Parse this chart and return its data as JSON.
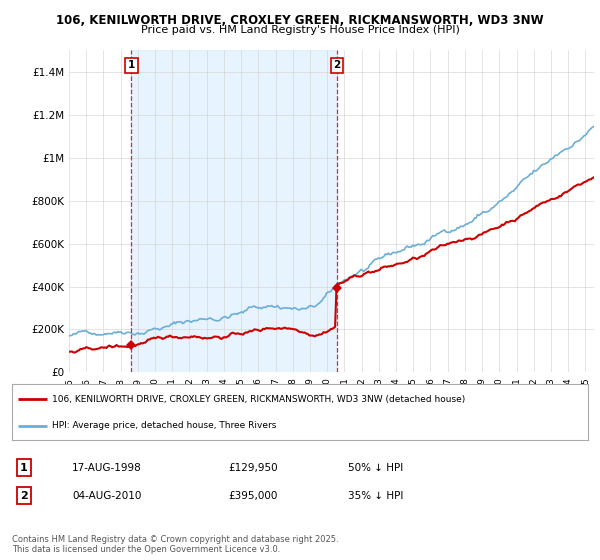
{
  "title1": "106, KENILWORTH DRIVE, CROXLEY GREEN, RICKMANSWORTH, WD3 3NW",
  "title2": "Price paid vs. HM Land Registry's House Price Index (HPI)",
  "hpi_color": "#6baed6",
  "property_color": "#cc0000",
  "shade_color": "#ddeeff",
  "background_color": "#ffffff",
  "fig_bg_color": "#ffffff",
  "ylim": [
    0,
    1500000
  ],
  "yticks": [
    0,
    200000,
    400000,
    600000,
    800000,
    1000000,
    1200000,
    1400000
  ],
  "ytick_labels": [
    "£0",
    "£200K",
    "£400K",
    "£600K",
    "£800K",
    "£1M",
    "£1.2M",
    "£1.4M"
  ],
  "sale1_year": 1998.62,
  "sale1_price": 129950,
  "sale1_label": "1",
  "sale1_date": "17-AUG-1998",
  "sale1_hpi": "50% ↓ HPI",
  "sale2_year": 2010.58,
  "sale2_price": 395000,
  "sale2_label": "2",
  "sale2_date": "04-AUG-2010",
  "sale2_hpi": "35% ↓ HPI",
  "legend_line1": "106, KENILWORTH DRIVE, CROXLEY GREEN, RICKMANSWORTH, WD3 3NW (detached house)",
  "legend_line2": "HPI: Average price, detached house, Three Rivers",
  "footer": "Contains HM Land Registry data © Crown copyright and database right 2025.\nThis data is licensed under the Open Government Licence v3.0."
}
